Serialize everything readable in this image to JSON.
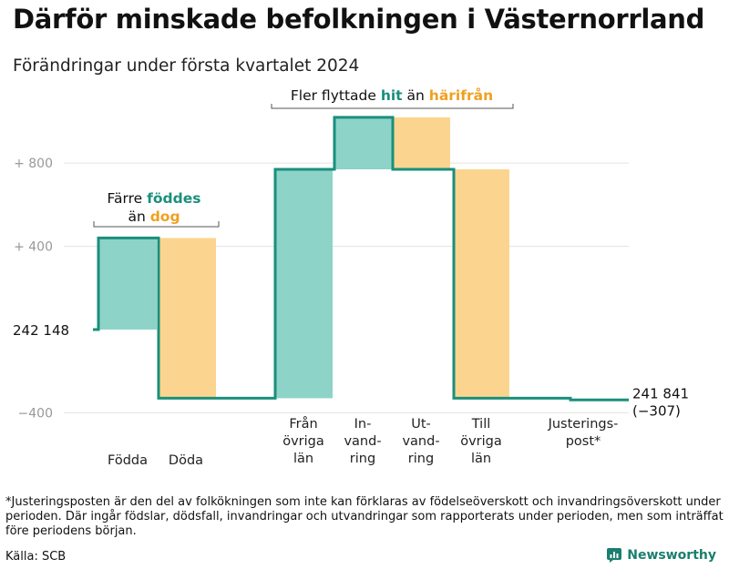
{
  "title": "Därför minskade befolkningen i Västernorrland",
  "subtitle": "Förändringar under första kvartalet 2024",
  "chart_data": {
    "type": "waterfall",
    "start": {
      "value": 242148,
      "label": "242 148"
    },
    "end": {
      "value": 241841,
      "label_line1": "241 841",
      "label_line2": "(−307)"
    },
    "yticks": [
      {
        "value": 800,
        "label": "+ 800"
      },
      {
        "value": 400,
        "label": "+ 400"
      },
      {
        "value": -400,
        "label": "−400"
      }
    ],
    "ylim": [
      -400,
      1100
    ],
    "steps": [
      {
        "category": "Födda",
        "lines": [
          "Födda"
        ],
        "value": 440,
        "kind": "in"
      },
      {
        "category": "Döda",
        "lines": [
          "Döda"
        ],
        "value": -770,
        "kind": "out"
      },
      {
        "category": "Från övriga län",
        "lines": [
          "Från",
          "övriga",
          "län"
        ],
        "value": 1100,
        "kind": "in"
      },
      {
        "category": "Invandring",
        "lines": [
          "In-",
          "vand-",
          "ring"
        ],
        "value": 250,
        "kind": "in"
      },
      {
        "category": "Utvandring",
        "lines": [
          "Ut-",
          "vand-",
          "ring"
        ],
        "value": -250,
        "kind": "out"
      },
      {
        "category": "Till övriga län",
        "lines": [
          "Till",
          "övriga",
          "län"
        ],
        "value": -1100,
        "kind": "out"
      },
      {
        "category": "Justeringspost*",
        "lines": [
          "Justerings-",
          "post*"
        ],
        "value": -8,
        "kind": "adjust"
      }
    ],
    "colors": {
      "in": "#8dd3c8",
      "out": "#fbd58f",
      "line": "#1a8f7c",
      "grid": "#e3e3e3"
    },
    "annotations": {
      "births": {
        "line1_prefix": "Färre ",
        "line1_highlight": "föddes",
        "line2_prefix": "än ",
        "line2_highlight": "dog"
      },
      "moves": {
        "prefix": "Fler flyttade ",
        "highlight1": "hit",
        "middle": " än ",
        "highlight2": "härifrån"
      }
    },
    "highlight_colors": {
      "teal": "#1a8f7c",
      "orange": "#f0a020"
    }
  },
  "footnote": "*Justeringsposten är den del av folkökningen som inte kan förklaras av födelseöverskott och invandringsöverskott under perioden. Där ingår födslar, dödsfall, invandringar och utvandringar som rapporterats under perioden, men som inträffat före periodens början.",
  "source": "Källa: SCB",
  "brand": "Newsworthy"
}
